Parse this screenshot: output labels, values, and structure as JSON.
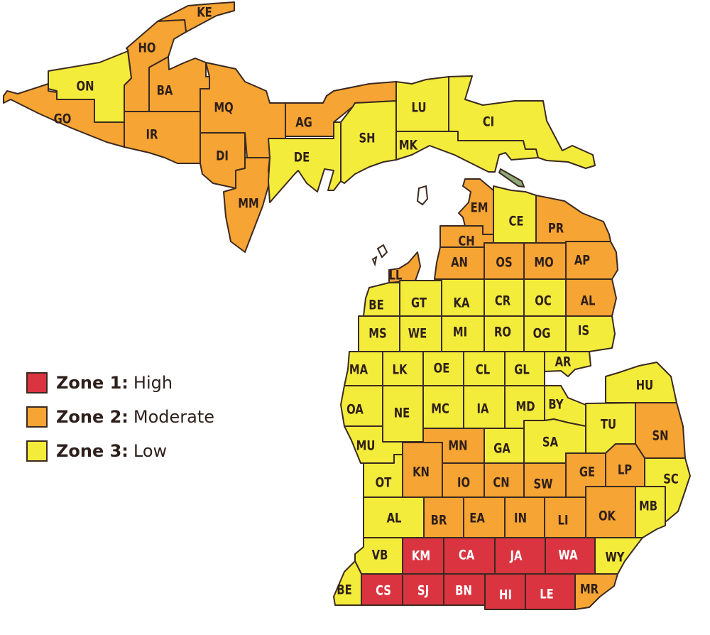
{
  "colors": {
    "zone1": "#da3440",
    "zone2": "#f6a433",
    "zone3": "#f3ec3b",
    "border": "#3b2a20",
    "island": "#8fa878",
    "label_dark": "#2e1f1a",
    "label_light": "#ffffff"
  },
  "legend": [
    {
      "zone_label": "Zone 1:",
      "level": "High",
      "zone": 1
    },
    {
      "zone_label": "Zone 2:",
      "level": "Moderate",
      "zone": 2
    },
    {
      "zone_label": "Zone 3:",
      "level": "Low",
      "zone": 3
    }
  ],
  "counties": [
    {
      "code": "KE",
      "zone": 2
    },
    {
      "code": "HO",
      "zone": 2
    },
    {
      "code": "ON",
      "zone": 3
    },
    {
      "code": "GO",
      "zone": 2
    },
    {
      "code": "BA",
      "zone": 2
    },
    {
      "code": "IR",
      "zone": 2
    },
    {
      "code": "MQ",
      "zone": 2
    },
    {
      "code": "DI",
      "zone": 2
    },
    {
      "code": "MM",
      "zone": 2
    },
    {
      "code": "AG",
      "zone": 2
    },
    {
      "code": "DE",
      "zone": 3
    },
    {
      "code": "SH",
      "zone": 3
    },
    {
      "code": "LU",
      "zone": 3
    },
    {
      "code": "MK",
      "zone": 3
    },
    {
      "code": "CI",
      "zone": 3
    },
    {
      "code": "EM",
      "zone": 2
    },
    {
      "code": "CE",
      "zone": 3
    },
    {
      "code": "PR",
      "zone": 2
    },
    {
      "code": "CH",
      "zone": 2
    },
    {
      "code": "AN",
      "zone": 2
    },
    {
      "code": "OS",
      "zone": 2
    },
    {
      "code": "MO",
      "zone": 2
    },
    {
      "code": "AP",
      "zone": 2
    },
    {
      "code": "LL",
      "zone": 2
    },
    {
      "code": "BE",
      "zone": 3
    },
    {
      "code": "GT",
      "zone": 3
    },
    {
      "code": "KA",
      "zone": 3
    },
    {
      "code": "CR",
      "zone": 3
    },
    {
      "code": "OC",
      "zone": 3
    },
    {
      "code": "AL",
      "zone": 2
    },
    {
      "code": "MS",
      "zone": 3
    },
    {
      "code": "WE",
      "zone": 3
    },
    {
      "code": "MI",
      "zone": 3
    },
    {
      "code": "RO",
      "zone": 3
    },
    {
      "code": "OG",
      "zone": 3
    },
    {
      "code": "IS",
      "zone": 3
    },
    {
      "code": "MA",
      "zone": 3
    },
    {
      "code": "LK",
      "zone": 3
    },
    {
      "code": "OE",
      "zone": 3
    },
    {
      "code": "CL",
      "zone": 3
    },
    {
      "code": "GL",
      "zone": 3
    },
    {
      "code": "AR",
      "zone": 3
    },
    {
      "code": "HU",
      "zone": 3
    },
    {
      "code": "OA",
      "zone": 3
    },
    {
      "code": "NE",
      "zone": 3
    },
    {
      "code": "MC",
      "zone": 3
    },
    {
      "code": "IA",
      "zone": 3
    },
    {
      "code": "MD",
      "zone": 3
    },
    {
      "code": "BY",
      "zone": 3
    },
    {
      "code": "MU",
      "zone": 3
    },
    {
      "code": "MN",
      "zone": 2
    },
    {
      "code": "GA",
      "zone": 3
    },
    {
      "code": "SA",
      "zone": 3
    },
    {
      "code": "TU",
      "zone": 3
    },
    {
      "code": "SN",
      "zone": 2
    },
    {
      "code": "OT",
      "zone": 3
    },
    {
      "code": "KN",
      "zone": 2
    },
    {
      "code": "IO",
      "zone": 2
    },
    {
      "code": "CN",
      "zone": 2
    },
    {
      "code": "SW",
      "zone": 2
    },
    {
      "code": "GE",
      "zone": 2
    },
    {
      "code": "LP",
      "zone": 2
    },
    {
      "code": "SC",
      "zone": 3
    },
    {
      "code": "AL",
      "zone": 3
    },
    {
      "code": "BR",
      "zone": 2
    },
    {
      "code": "EA",
      "zone": 2
    },
    {
      "code": "IN",
      "zone": 2
    },
    {
      "code": "LI",
      "zone": 2
    },
    {
      "code": "OK",
      "zone": 2
    },
    {
      "code": "MB",
      "zone": 3
    },
    {
      "code": "VB",
      "zone": 3
    },
    {
      "code": "KM",
      "zone": 1
    },
    {
      "code": "CA",
      "zone": 1
    },
    {
      "code": "JA",
      "zone": 1
    },
    {
      "code": "WA",
      "zone": 1
    },
    {
      "code": "WY",
      "zone": 3
    },
    {
      "code": "BE",
      "zone": 3
    },
    {
      "code": "CS",
      "zone": 1
    },
    {
      "code": "SJ",
      "zone": 1
    },
    {
      "code": "BN",
      "zone": 1
    },
    {
      "code": "HI",
      "zone": 1
    },
    {
      "code": "LE",
      "zone": 1
    },
    {
      "code": "MR",
      "zone": 2
    }
  ]
}
